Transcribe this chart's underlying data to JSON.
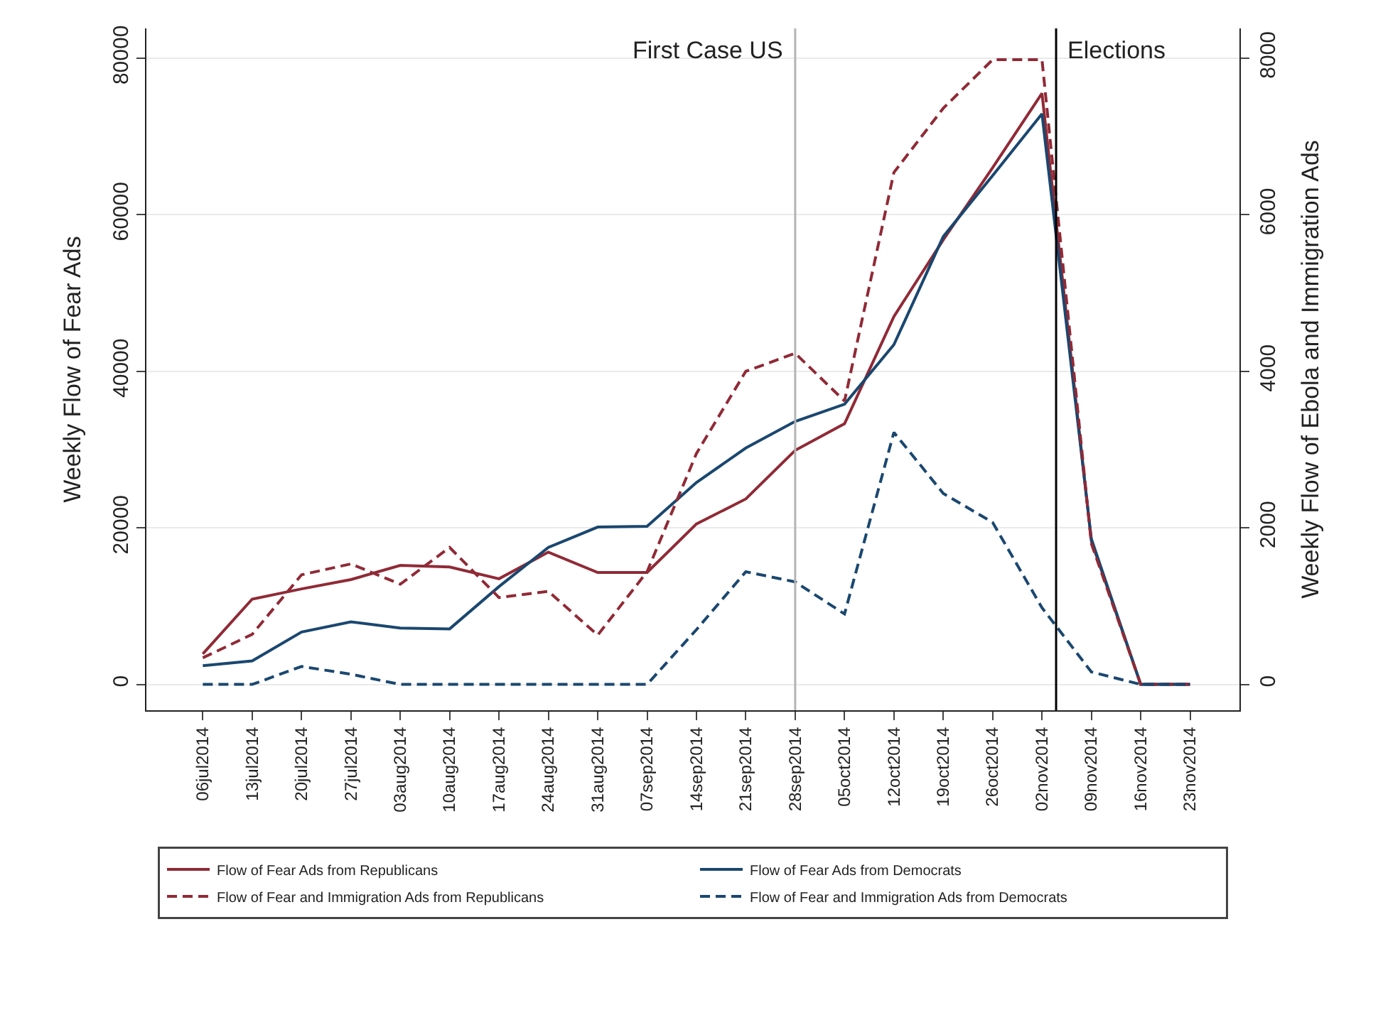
{
  "chart_data": {
    "type": "line",
    "xlabel": null,
    "ylabel": "Weekly Flow of Fear Ads",
    "y2label": "Weekly Flow of Ebola and Immigration Ads",
    "x": [
      "2014-07-06",
      "2014-07-13",
      "2014-07-20",
      "2014-07-27",
      "2014-08-03",
      "2014-08-10",
      "2014-08-17",
      "2014-08-24",
      "2014-08-31",
      "2014-09-07",
      "2014-09-14",
      "2014-09-21",
      "2014-09-28",
      "2014-10-05",
      "2014-10-12",
      "2014-10-19",
      "2014-10-26",
      "2014-11-02",
      "2014-11-09",
      "2014-11-16",
      "2014-11-23"
    ],
    "series": [
      {
        "name": "Flow of Fear Ads from Republicans",
        "color": "#902a36",
        "line_style": "solid",
        "values": [
          3900,
          10900,
          12200,
          13400,
          15200,
          15000,
          13500,
          16900,
          14300,
          14300,
          20500,
          23700,
          29900,
          33300,
          47000,
          56800,
          66000,
          75500,
          18300,
          0,
          0
        ]
      },
      {
        "name": "Flow of Fear Ads from Democrats",
        "color": "#1a476f",
        "line_style": "solid",
        "values": [
          2400,
          3000,
          6700,
          8000,
          7200,
          7100,
          12500,
          17500,
          20100,
          20200,
          25800,
          30200,
          33600,
          35800,
          43400,
          57200,
          65000,
          72900,
          18600,
          0,
          0
        ]
      },
      {
        "name": "Flow of Fear and Immigration Ads from Republicans",
        "color": "#902a36",
        "line_style": "dashed",
        "axis": "y2",
        "values": [
          340,
          640,
          1400,
          1540,
          1280,
          1750,
          1110,
          1190,
          630,
          1440,
          2950,
          4000,
          4230,
          3620,
          6540,
          7360,
          7980,
          7980,
          1800,
          0,
          0
        ]
      },
      {
        "name": "Flow of Fear and Immigration Ads from Democrats",
        "color": "#1a476f",
        "line_style": "dashed",
        "axis": "y2",
        "values": [
          0,
          0,
          230,
          130,
          0,
          0,
          0,
          0,
          0,
          0,
          700,
          1440,
          1310,
          900,
          3220,
          2440,
          2070,
          980,
          160,
          0,
          0
        ]
      }
    ],
    "xlim": [
      "2014-06-28",
      "2014-11-30"
    ],
    "xticks": [
      {
        "value": "2014-07-06",
        "label": "06jul2014"
      },
      {
        "value": "2014-07-13",
        "label": "13jul2014"
      },
      {
        "value": "2014-07-20",
        "label": "20jul2014"
      },
      {
        "value": "2014-07-27",
        "label": "27jul2014"
      },
      {
        "value": "2014-08-03",
        "label": "03aug2014"
      },
      {
        "value": "2014-08-10",
        "label": "10aug2014"
      },
      {
        "value": "2014-08-17",
        "label": "17aug2014"
      },
      {
        "value": "2014-08-24",
        "label": "24aug2014"
      },
      {
        "value": "2014-08-31",
        "label": "31aug2014"
      },
      {
        "value": "2014-09-07",
        "label": "07sep2014"
      },
      {
        "value": "2014-09-14",
        "label": "14sep2014"
      },
      {
        "value": "2014-09-21",
        "label": "21sep2014"
      },
      {
        "value": "2014-09-28",
        "label": "28sep2014"
      },
      {
        "value": "2014-10-05",
        "label": "05oct2014"
      },
      {
        "value": "2014-10-12",
        "label": "12oct2014"
      },
      {
        "value": "2014-10-19",
        "label": "19oct2014"
      },
      {
        "value": "2014-10-26",
        "label": "26oct2014"
      },
      {
        "value": "2014-11-02",
        "label": "02nov2014"
      },
      {
        "value": "2014-11-09",
        "label": "09nov2014"
      },
      {
        "value": "2014-11-16",
        "label": "16nov2014"
      },
      {
        "value": "2014-11-23",
        "label": "23nov2014"
      }
    ],
    "ylim": [
      -3300,
      83800
    ],
    "yticks": [
      0,
      20000,
      40000,
      60000,
      80000
    ],
    "y2lim": [
      -330,
      8380
    ],
    "y2ticks": [
      0,
      2000,
      4000,
      6000,
      8000
    ],
    "ref_lines": [
      {
        "axis": "x",
        "value": "2014-09-28",
        "label": "First Case US",
        "color": "#b4b4b4"
      },
      {
        "axis": "x",
        "value": "2014-11-04",
        "label": "Elections",
        "color": "#000000"
      }
    ],
    "grid": "y",
    "legend": "bottom",
    "marker": "none"
  }
}
